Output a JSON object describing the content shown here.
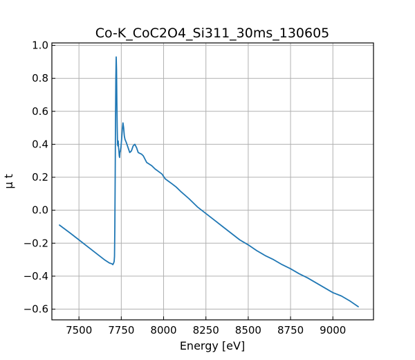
{
  "chart_data": {
    "type": "line",
    "title": "Co-K_CoC2O4_Si311_30ms_130605",
    "xlabel": "Energy [eV]",
    "ylabel": "μ t",
    "xlim": [
      7340,
      9240
    ],
    "ylim": [
      -0.665,
      1.015
    ],
    "x_ticks": [
      7500,
      7750,
      8000,
      8250,
      8500,
      8750,
      9000
    ],
    "y_ticks": [
      -0.6,
      -0.4,
      -0.2,
      0.0,
      0.2,
      0.4,
      0.6,
      0.8,
      1.0
    ],
    "x_tick_labels": [
      "7500",
      "7750",
      "8000",
      "8250",
      "8500",
      "8750",
      "9000"
    ],
    "y_tick_labels": [
      "−0.6",
      "−0.4",
      "−0.2",
      "0.0",
      "0.2",
      "0.4",
      "0.6",
      "0.8",
      "1.0"
    ],
    "grid": true,
    "series": [
      {
        "color": "#1f77b4",
        "x": [
          7385,
          7450,
          7500,
          7550,
          7600,
          7650,
          7680,
          7695,
          7700,
          7705,
          7708,
          7710,
          7712,
          7714,
          7716,
          7718,
          7720,
          7722,
          7724,
          7726,
          7728,
          7730,
          7732,
          7734,
          7736,
          7738,
          7740,
          7742,
          7745,
          7748,
          7752,
          7756,
          7760,
          7764,
          7768,
          7772,
          7776,
          7780,
          7790,
          7800,
          7810,
          7820,
          7830,
          7840,
          7850,
          7860,
          7870,
          7880,
          7890,
          7900,
          7915,
          7930,
          7950,
          7970,
          7990,
          8000,
          8010,
          8030,
          8050,
          8075,
          8100,
          8150,
          8200,
          8250,
          8300,
          8350,
          8400,
          8450,
          8500,
          8550,
          8600,
          8650,
          8700,
          8750,
          8800,
          8850,
          8900,
          8950,
          9000,
          9050,
          9100,
          9150
        ],
        "y": [
          -0.09,
          -0.14,
          -0.18,
          -0.22,
          -0.26,
          -0.3,
          -0.32,
          -0.325,
          -0.33,
          -0.32,
          -0.31,
          -0.28,
          -0.1,
          0.2,
          0.55,
          0.8,
          0.93,
          0.85,
          0.65,
          0.5,
          0.4,
          0.39,
          0.42,
          0.38,
          0.36,
          0.33,
          0.32,
          0.35,
          0.36,
          0.38,
          0.43,
          0.49,
          0.53,
          0.5,
          0.45,
          0.43,
          0.42,
          0.41,
          0.38,
          0.35,
          0.36,
          0.39,
          0.4,
          0.38,
          0.35,
          0.345,
          0.34,
          0.33,
          0.31,
          0.29,
          0.28,
          0.27,
          0.25,
          0.235,
          0.22,
          0.205,
          0.19,
          0.175,
          0.16,
          0.14,
          0.115,
          0.07,
          0.02,
          -0.02,
          -0.06,
          -0.1,
          -0.14,
          -0.18,
          -0.21,
          -0.245,
          -0.275,
          -0.3,
          -0.33,
          -0.355,
          -0.385,
          -0.41,
          -0.44,
          -0.47,
          -0.5,
          -0.52,
          -0.55,
          -0.585
        ]
      }
    ]
  }
}
